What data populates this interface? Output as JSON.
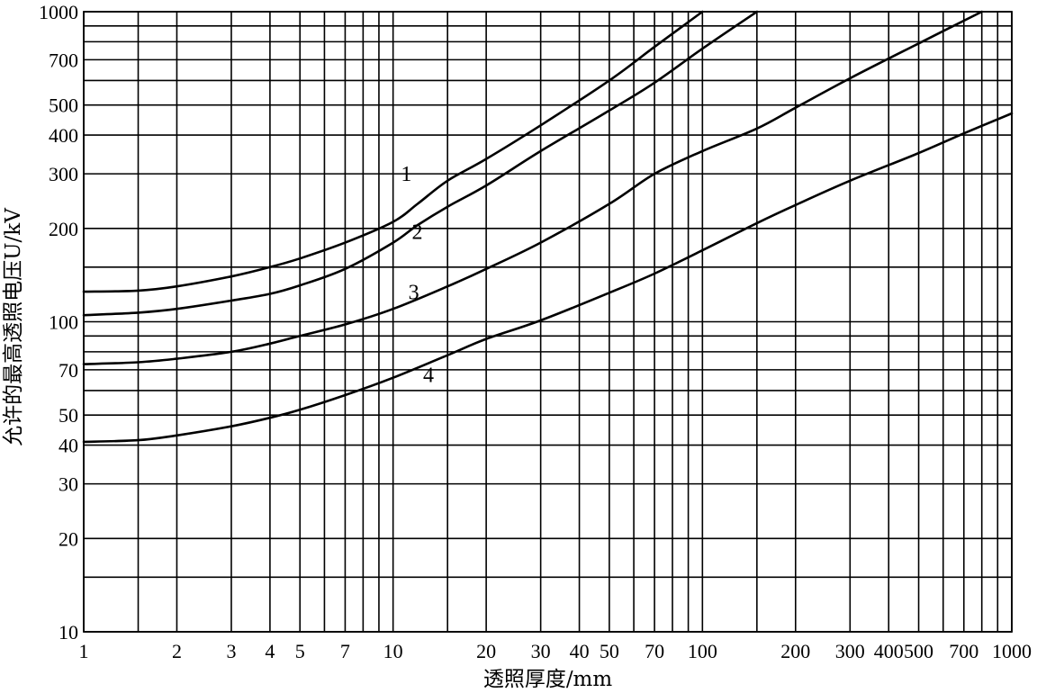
{
  "chart_data": {
    "type": "line",
    "title": "",
    "xlabel": "透照厚度/mm",
    "ylabel": "允许的最高透照电压U/kV",
    "xscale": "log",
    "yscale": "log",
    "xlim": [
      1,
      1000
    ],
    "ylim": [
      10,
      1000
    ],
    "grid": true,
    "x_grid": [
      1,
      1.5,
      2,
      3,
      4,
      5,
      6,
      7,
      8,
      9,
      10,
      15,
      20,
      30,
      40,
      50,
      60,
      70,
      80,
      90,
      100,
      150,
      200,
      300,
      400,
      500,
      600,
      700,
      800,
      900,
      1000
    ],
    "y_grid": [
      10,
      15,
      20,
      30,
      40,
      50,
      60,
      70,
      80,
      90,
      100,
      150,
      200,
      300,
      400,
      500,
      600,
      700,
      800,
      900,
      1000
    ],
    "x_ticks": [
      {
        "v": 1,
        "label": "1"
      },
      {
        "v": 2,
        "label": "2"
      },
      {
        "v": 3,
        "label": "3"
      },
      {
        "v": 4,
        "label": "4"
      },
      {
        "v": 5,
        "label": "5"
      },
      {
        "v": 7,
        "label": "7"
      },
      {
        "v": 10,
        "label": "10"
      },
      {
        "v": 20,
        "label": "20"
      },
      {
        "v": 30,
        "label": "30"
      },
      {
        "v": 40,
        "label": "40"
      },
      {
        "v": 50,
        "label": "50"
      },
      {
        "v": 70,
        "label": "70"
      },
      {
        "v": 100,
        "label": "100"
      },
      {
        "v": 200,
        "label": "200"
      },
      {
        "v": 300,
        "label": "300"
      },
      {
        "v": 400,
        "label": "400"
      },
      {
        "v": 500,
        "label": "500"
      },
      {
        "v": 700,
        "label": "700"
      },
      {
        "v": 1000,
        "label": "1000"
      }
    ],
    "y_ticks": [
      {
        "v": 10,
        "label": "10"
      },
      {
        "v": 20,
        "label": "20"
      },
      {
        "v": 30,
        "label": "30"
      },
      {
        "v": 40,
        "label": "40"
      },
      {
        "v": 50,
        "label": "50"
      },
      {
        "v": 70,
        "label": "70"
      },
      {
        "v": 100,
        "label": "100"
      },
      {
        "v": 200,
        "label": "200"
      },
      {
        "v": 300,
        "label": "300"
      },
      {
        "v": 400,
        "label": "400"
      },
      {
        "v": 500,
        "label": "500"
      },
      {
        "v": 700,
        "label": "700"
      },
      {
        "v": 1000,
        "label": "1000"
      }
    ],
    "series": [
      {
        "name": "1",
        "x": [
          1,
          1.5,
          2,
          3,
          4,
          5,
          7,
          10,
          12,
          15,
          20,
          30,
          50,
          70,
          100
        ],
        "y": [
          125,
          126,
          130,
          140,
          150,
          160,
          180,
          210,
          240,
          285,
          335,
          430,
          600,
          770,
          1000
        ]
      },
      {
        "name": "2",
        "x": [
          1,
          1.5,
          2,
          3,
          4,
          5,
          7,
          10,
          12,
          15,
          20,
          30,
          50,
          70,
          100,
          150
        ],
        "y": [
          105,
          107,
          110,
          117,
          123,
          131,
          148,
          180,
          205,
          235,
          275,
          355,
          480,
          590,
          760,
          1000
        ]
      },
      {
        "name": "3",
        "x": [
          1,
          1.5,
          2,
          3,
          4,
          5,
          7,
          10,
          15,
          20,
          30,
          50,
          70,
          100,
          150,
          200,
          300,
          500,
          800
        ],
        "y": [
          73,
          74,
          76,
          80,
          85,
          90,
          98,
          110,
          130,
          148,
          180,
          240,
          300,
          355,
          420,
          490,
          610,
          790,
          1000
        ]
      },
      {
        "name": "4",
        "x": [
          1,
          1.5,
          2,
          3,
          4,
          5,
          7,
          10,
          15,
          20,
          30,
          50,
          70,
          100,
          150,
          200,
          300,
          500,
          700,
          1000
        ],
        "y": [
          41,
          41.5,
          43,
          46,
          49,
          52,
          58,
          66,
          78,
          88,
          101,
          124,
          143,
          170,
          208,
          238,
          285,
          350,
          405,
          470
        ]
      }
    ]
  }
}
